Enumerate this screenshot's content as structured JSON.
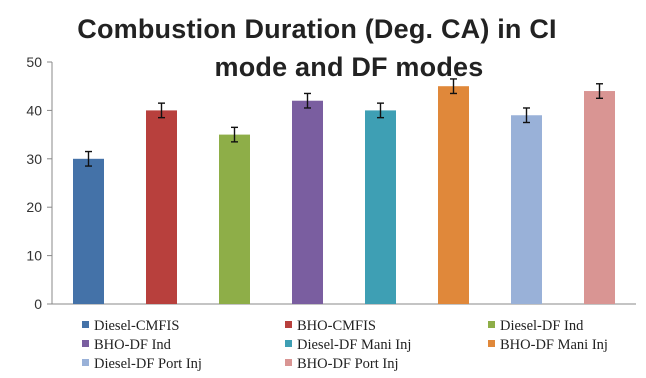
{
  "chart_data": {
    "type": "bar",
    "title_lines": [
      "Combustion Duration (Deg. CA) in CI",
      "mode and DF modes"
    ],
    "xlabel": "",
    "ylabel": "",
    "ylim": [
      0,
      50
    ],
    "yticks": [
      0,
      10,
      20,
      30,
      40,
      50
    ],
    "grid": false,
    "legend_position": "bottom",
    "series": [
      {
        "name": "Diesel-CMFIS",
        "value": 30,
        "error": 1.5,
        "color": "#4472a8"
      },
      {
        "name": "BHO-CMFIS",
        "value": 40,
        "error": 1.5,
        "color": "#b8403d"
      },
      {
        "name": "Diesel-DF Ind",
        "value": 35,
        "error": 1.5,
        "color": "#8eae48"
      },
      {
        "name": "BHO-DF Ind",
        "value": 42,
        "error": 1.5,
        "color": "#7a5ea0"
      },
      {
        "name": "Diesel-DF Mani Inj",
        "value": 40,
        "error": 1.5,
        "color": "#3e9fb4"
      },
      {
        "name": "BHO-DF Mani Inj",
        "value": 45,
        "error": 1.5,
        "color": "#e0883a"
      },
      {
        "name": "Diesel-DF Port Inj",
        "value": 39,
        "error": 1.5,
        "color": "#99b1d8"
      },
      {
        "name": "BHO-DF Port Inj",
        "value": 44,
        "error": 1.5,
        "color": "#d99593"
      }
    ]
  }
}
